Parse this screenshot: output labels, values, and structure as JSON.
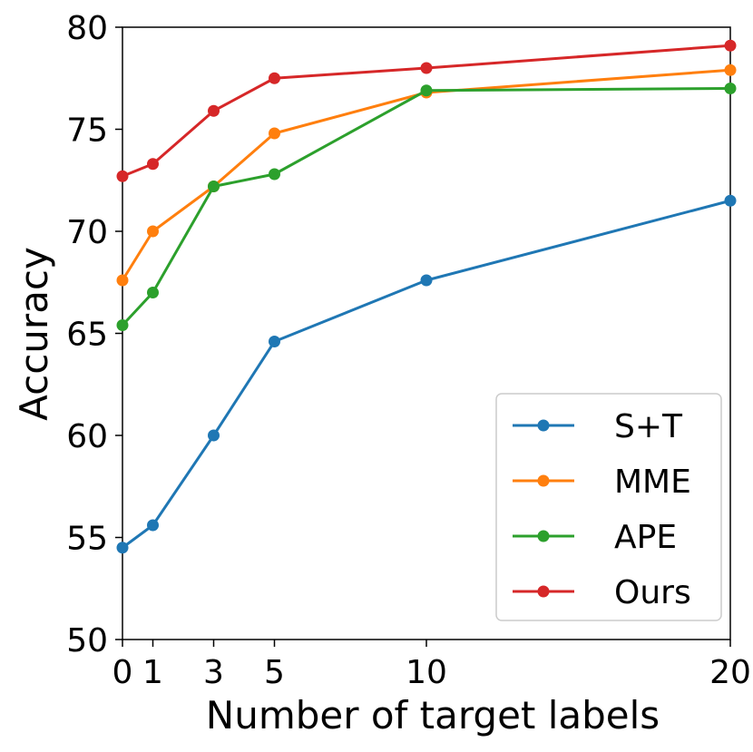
{
  "chart_data": {
    "type": "line",
    "title": "",
    "xlabel": "Number of target labels",
    "ylabel": "Accuracy",
    "x": [
      0,
      1,
      3,
      5,
      10,
      20
    ],
    "xticks": [
      "0",
      "1",
      "3",
      "5",
      "10",
      "20"
    ],
    "yticks": [
      "50",
      "55",
      "60",
      "65",
      "70",
      "75",
      "80"
    ],
    "xlim": [
      0,
      20
    ],
    "ylim": [
      50,
      80
    ],
    "grid": false,
    "legend_position": "bottom-right",
    "series": [
      {
        "name": "S+T",
        "color": "#1f77b4",
        "values": [
          54.5,
          55.6,
          60.0,
          64.6,
          67.6,
          71.5
        ]
      },
      {
        "name": "MME",
        "color": "#ff7f0e",
        "values": [
          67.6,
          70.0,
          72.2,
          74.8,
          76.8,
          77.9
        ]
      },
      {
        "name": "APE",
        "color": "#2ca02c",
        "values": [
          65.4,
          67.0,
          72.2,
          72.8,
          76.9,
          77.0
        ]
      },
      {
        "name": "Ours",
        "color": "#d62728",
        "values": [
          72.7,
          73.3,
          75.9,
          77.5,
          78.0,
          79.1
        ]
      }
    ]
  }
}
